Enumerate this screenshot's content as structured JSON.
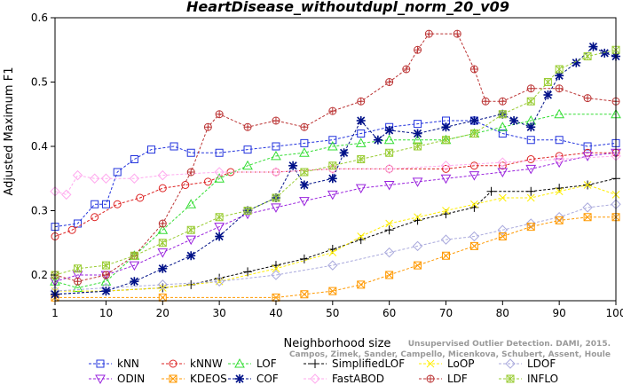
{
  "chart_data": {
    "type": "line",
    "title": "HeartDisease_withoutdupl_norm_20_v09",
    "xlabel": "Neighborhood size",
    "ylabel": "Adjusted Maximum F1",
    "xlim": [
      1,
      100
    ],
    "ylim": [
      0.16,
      0.6
    ],
    "xticks": [
      1,
      10,
      20,
      30,
      40,
      50,
      60,
      70,
      80,
      90,
      100
    ],
    "yticks": [
      0.2,
      0.3,
      0.4,
      0.5,
      0.6
    ],
    "grid": false,
    "legend_position": "bottom",
    "watermark": [
      "Campos, Zimek, Sander, Campello, Micenkova, Schubert, Assent, Houle",
      "Unsupervised Outlier Detection. DAMI, 2015."
    ],
    "series": [
      {
        "name": "kNN",
        "color": "#2233dd",
        "marker": "square",
        "points": [
          [
            1,
            0.275
          ],
          [
            5,
            0.28
          ],
          [
            8,
            0.31
          ],
          [
            10,
            0.31
          ],
          [
            12,
            0.36
          ],
          [
            15,
            0.38
          ],
          [
            18,
            0.395
          ],
          [
            22,
            0.4
          ],
          [
            25,
            0.39
          ],
          [
            30,
            0.39
          ],
          [
            35,
            0.395
          ],
          [
            40,
            0.4
          ],
          [
            45,
            0.405
          ],
          [
            50,
            0.41
          ],
          [
            55,
            0.42
          ],
          [
            60,
            0.43
          ],
          [
            65,
            0.435
          ],
          [
            70,
            0.44
          ],
          [
            75,
            0.44
          ],
          [
            80,
            0.42
          ],
          [
            85,
            0.41
          ],
          [
            90,
            0.41
          ],
          [
            95,
            0.4
          ],
          [
            100,
            0.405
          ]
        ]
      },
      {
        "name": "kNNW",
        "color": "#dd2222",
        "marker": "circle",
        "points": [
          [
            1,
            0.26
          ],
          [
            4,
            0.27
          ],
          [
            8,
            0.29
          ],
          [
            12,
            0.31
          ],
          [
            16,
            0.32
          ],
          [
            20,
            0.335
          ],
          [
            24,
            0.34
          ],
          [
            28,
            0.345
          ],
          [
            32,
            0.36
          ],
          [
            40,
            0.36
          ],
          [
            50,
            0.365
          ],
          [
            60,
            0.365
          ],
          [
            70,
            0.365
          ],
          [
            75,
            0.37
          ],
          [
            80,
            0.37
          ],
          [
            85,
            0.38
          ],
          [
            90,
            0.385
          ],
          [
            95,
            0.39
          ],
          [
            100,
            0.39
          ]
        ]
      },
      {
        "name": "LOF",
        "color": "#33dd33",
        "marker": "triangle-up",
        "points": [
          [
            1,
            0.19
          ],
          [
            5,
            0.18
          ],
          [
            10,
            0.19
          ],
          [
            15,
            0.23
          ],
          [
            20,
            0.27
          ],
          [
            25,
            0.31
          ],
          [
            30,
            0.35
          ],
          [
            35,
            0.37
          ],
          [
            40,
            0.385
          ],
          [
            45,
            0.39
          ],
          [
            50,
            0.4
          ],
          [
            55,
            0.405
          ],
          [
            60,
            0.41
          ],
          [
            65,
            0.41
          ],
          [
            70,
            0.41
          ],
          [
            75,
            0.42
          ],
          [
            80,
            0.43
          ],
          [
            85,
            0.44
          ],
          [
            90,
            0.45
          ],
          [
            100,
            0.45
          ]
        ]
      },
      {
        "name": "SimplifiedLOF",
        "color": "#000000",
        "marker": "plus",
        "points": [
          [
            1,
            0.17
          ],
          [
            10,
            0.175
          ],
          [
            20,
            0.18
          ],
          [
            25,
            0.185
          ],
          [
            30,
            0.195
          ],
          [
            35,
            0.205
          ],
          [
            40,
            0.215
          ],
          [
            45,
            0.225
          ],
          [
            50,
            0.24
          ],
          [
            55,
            0.255
          ],
          [
            60,
            0.27
          ],
          [
            65,
            0.285
          ],
          [
            70,
            0.295
          ],
          [
            75,
            0.305
          ],
          [
            78,
            0.33
          ],
          [
            85,
            0.33
          ],
          [
            90,
            0.335
          ],
          [
            95,
            0.34
          ],
          [
            100,
            0.35
          ]
        ]
      },
      {
        "name": "LoOP",
        "color": "#ffee00",
        "marker": "x",
        "points": [
          [
            1,
            0.175
          ],
          [
            10,
            0.175
          ],
          [
            20,
            0.18
          ],
          [
            30,
            0.19
          ],
          [
            40,
            0.21
          ],
          [
            50,
            0.235
          ],
          [
            55,
            0.26
          ],
          [
            60,
            0.28
          ],
          [
            65,
            0.29
          ],
          [
            70,
            0.3
          ],
          [
            75,
            0.31
          ],
          [
            80,
            0.32
          ],
          [
            85,
            0.32
          ],
          [
            90,
            0.33
          ],
          [
            95,
            0.34
          ],
          [
            100,
            0.325
          ]
        ]
      },
      {
        "name": "LDOF",
        "color": "#aaaadd",
        "marker": "diamond",
        "points": [
          [
            1,
            0.175
          ],
          [
            10,
            0.18
          ],
          [
            20,
            0.185
          ],
          [
            30,
            0.19
          ],
          [
            40,
            0.2
          ],
          [
            50,
            0.215
          ],
          [
            60,
            0.235
          ],
          [
            65,
            0.245
          ],
          [
            70,
            0.255
          ],
          [
            75,
            0.26
          ],
          [
            80,
            0.27
          ],
          [
            85,
            0.28
          ],
          [
            90,
            0.29
          ],
          [
            95,
            0.305
          ],
          [
            100,
            0.31
          ]
        ]
      },
      {
        "name": "ODIN",
        "color": "#9922dd",
        "marker": "triangle-down",
        "points": [
          [
            1,
            0.19
          ],
          [
            5,
            0.2
          ],
          [
            10,
            0.2
          ],
          [
            15,
            0.215
          ],
          [
            20,
            0.235
          ],
          [
            25,
            0.255
          ],
          [
            30,
            0.275
          ],
          [
            35,
            0.295
          ],
          [
            40,
            0.305
          ],
          [
            45,
            0.315
          ],
          [
            50,
            0.325
          ],
          [
            55,
            0.335
          ],
          [
            60,
            0.34
          ],
          [
            65,
            0.345
          ],
          [
            70,
            0.35
          ],
          [
            75,
            0.355
          ],
          [
            80,
            0.36
          ],
          [
            85,
            0.365
          ],
          [
            90,
            0.375
          ],
          [
            95,
            0.385
          ],
          [
            100,
            0.39
          ]
        ]
      },
      {
        "name": "KDEOS",
        "color": "#ff9900",
        "marker": "square-x",
        "points": [
          [
            1,
            0.165
          ],
          [
            20,
            0.165
          ],
          [
            40,
            0.165
          ],
          [
            45,
            0.17
          ],
          [
            50,
            0.175
          ],
          [
            55,
            0.185
          ],
          [
            60,
            0.2
          ],
          [
            65,
            0.215
          ],
          [
            70,
            0.23
          ],
          [
            75,
            0.245
          ],
          [
            80,
            0.26
          ],
          [
            85,
            0.275
          ],
          [
            90,
            0.285
          ],
          [
            95,
            0.29
          ],
          [
            100,
            0.29
          ]
        ]
      },
      {
        "name": "COF",
        "color": "#001188",
        "marker": "asterisk",
        "points": [
          [
            1,
            0.17
          ],
          [
            10,
            0.175
          ],
          [
            15,
            0.19
          ],
          [
            20,
            0.21
          ],
          [
            25,
            0.23
          ],
          [
            30,
            0.26
          ],
          [
            35,
            0.3
          ],
          [
            40,
            0.32
          ],
          [
            43,
            0.37
          ],
          [
            45,
            0.34
          ],
          [
            50,
            0.35
          ],
          [
            52,
            0.39
          ],
          [
            55,
            0.44
          ],
          [
            58,
            0.41
          ],
          [
            60,
            0.425
          ],
          [
            65,
            0.42
          ],
          [
            70,
            0.43
          ],
          [
            75,
            0.44
          ],
          [
            80,
            0.45
          ],
          [
            82,
            0.44
          ],
          [
            85,
            0.43
          ],
          [
            88,
            0.48
          ],
          [
            90,
            0.51
          ],
          [
            93,
            0.53
          ],
          [
            96,
            0.555
          ],
          [
            98,
            0.545
          ],
          [
            100,
            0.54
          ]
        ]
      },
      {
        "name": "FastABOD",
        "color": "#ffaaee",
        "marker": "diamond",
        "points": [
          [
            1,
            0.33
          ],
          [
            3,
            0.325
          ],
          [
            5,
            0.355
          ],
          [
            8,
            0.35
          ],
          [
            10,
            0.35
          ],
          [
            15,
            0.35
          ],
          [
            20,
            0.355
          ],
          [
            30,
            0.36
          ],
          [
            40,
            0.36
          ],
          [
            50,
            0.365
          ],
          [
            60,
            0.365
          ],
          [
            70,
            0.37
          ],
          [
            80,
            0.375
          ],
          [
            90,
            0.38
          ],
          [
            100,
            0.385
          ]
        ]
      },
      {
        "name": "LDF",
        "color": "#bb3333",
        "marker": "circle-plus",
        "points": [
          [
            1,
            0.2
          ],
          [
            5,
            0.19
          ],
          [
            10,
            0.2
          ],
          [
            15,
            0.23
          ],
          [
            20,
            0.28
          ],
          [
            25,
            0.36
          ],
          [
            28,
            0.43
          ],
          [
            30,
            0.45
          ],
          [
            35,
            0.43
          ],
          [
            40,
            0.44
          ],
          [
            45,
            0.43
          ],
          [
            50,
            0.455
          ],
          [
            55,
            0.47
          ],
          [
            60,
            0.5
          ],
          [
            63,
            0.52
          ],
          [
            65,
            0.55
          ],
          [
            67,
            0.575
          ],
          [
            72,
            0.575
          ],
          [
            75,
            0.52
          ],
          [
            77,
            0.47
          ],
          [
            80,
            0.47
          ],
          [
            85,
            0.49
          ],
          [
            90,
            0.49
          ],
          [
            95,
            0.475
          ],
          [
            100,
            0.47
          ]
        ]
      },
      {
        "name": "INFLO",
        "color": "#99cc33",
        "marker": "star-box",
        "points": [
          [
            1,
            0.2
          ],
          [
            5,
            0.21
          ],
          [
            10,
            0.215
          ],
          [
            15,
            0.23
          ],
          [
            20,
            0.25
          ],
          [
            25,
            0.27
          ],
          [
            30,
            0.29
          ],
          [
            35,
            0.3
          ],
          [
            40,
            0.32
          ],
          [
            45,
            0.36
          ],
          [
            50,
            0.37
          ],
          [
            55,
            0.38
          ],
          [
            60,
            0.39
          ],
          [
            65,
            0.4
          ],
          [
            70,
            0.41
          ],
          [
            75,
            0.42
          ],
          [
            80,
            0.45
          ],
          [
            85,
            0.47
          ],
          [
            88,
            0.5
          ],
          [
            90,
            0.52
          ],
          [
            95,
            0.54
          ],
          [
            100,
            0.55
          ]
        ]
      }
    ]
  }
}
